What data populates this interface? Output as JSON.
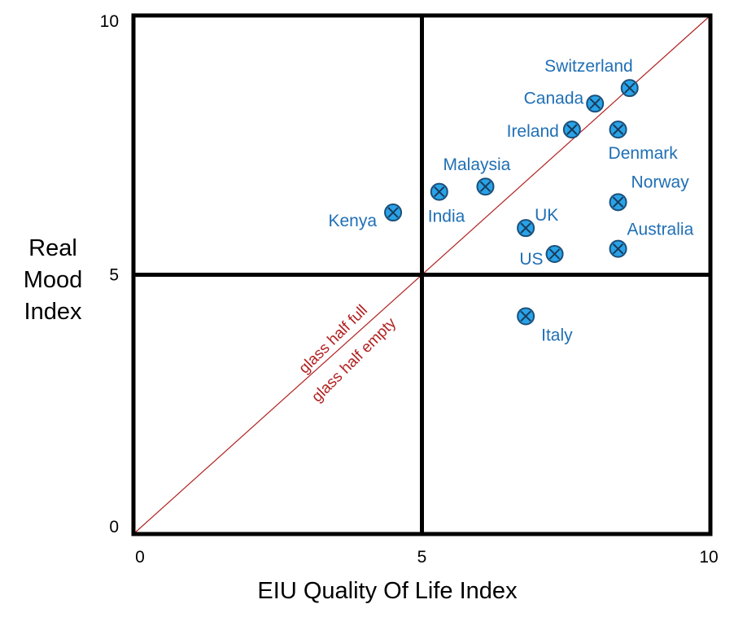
{
  "chart_data": {
    "type": "scatter",
    "xlabel": "EIU Quality Of Life Index",
    "ylabel": [
      "Real",
      "Mood",
      "Index"
    ],
    "xlim": [
      0,
      10
    ],
    "ylim": [
      0,
      10
    ],
    "x_ticks": [
      "0",
      "5",
      "10"
    ],
    "y_ticks": [
      "0",
      "5",
      "10"
    ],
    "quadrant_divider": {
      "x": 5,
      "y": 5
    },
    "diagonal": {
      "from": [
        0,
        0
      ],
      "to": [
        10,
        10
      ],
      "label_above": "glass half full",
      "label_below": "glass half empty",
      "color": "#b22222"
    },
    "point_color": "#29a3e8",
    "label_color": "#1f6fb5",
    "points": [
      {
        "label": "Switzerland",
        "x": 8.6,
        "y": 8.6
      },
      {
        "label": "Canada",
        "x": 8.0,
        "y": 8.3
      },
      {
        "label": "Ireland",
        "x": 7.6,
        "y": 7.8
      },
      {
        "label": "Denmark",
        "x": 8.4,
        "y": 7.8
      },
      {
        "label": "Malaysia",
        "x": 6.1,
        "y": 6.7
      },
      {
        "label": "India",
        "x": 5.3,
        "y": 6.6
      },
      {
        "label": "Kenya",
        "x": 4.5,
        "y": 6.2
      },
      {
        "label": "Norway",
        "x": 8.4,
        "y": 6.4
      },
      {
        "label": "UK",
        "x": 6.8,
        "y": 5.9
      },
      {
        "label": "US",
        "x": 7.3,
        "y": 5.4
      },
      {
        "label": "Australia",
        "x": 8.4,
        "y": 5.5
      },
      {
        "label": "Italy",
        "x": 6.8,
        "y": 4.2
      }
    ]
  }
}
